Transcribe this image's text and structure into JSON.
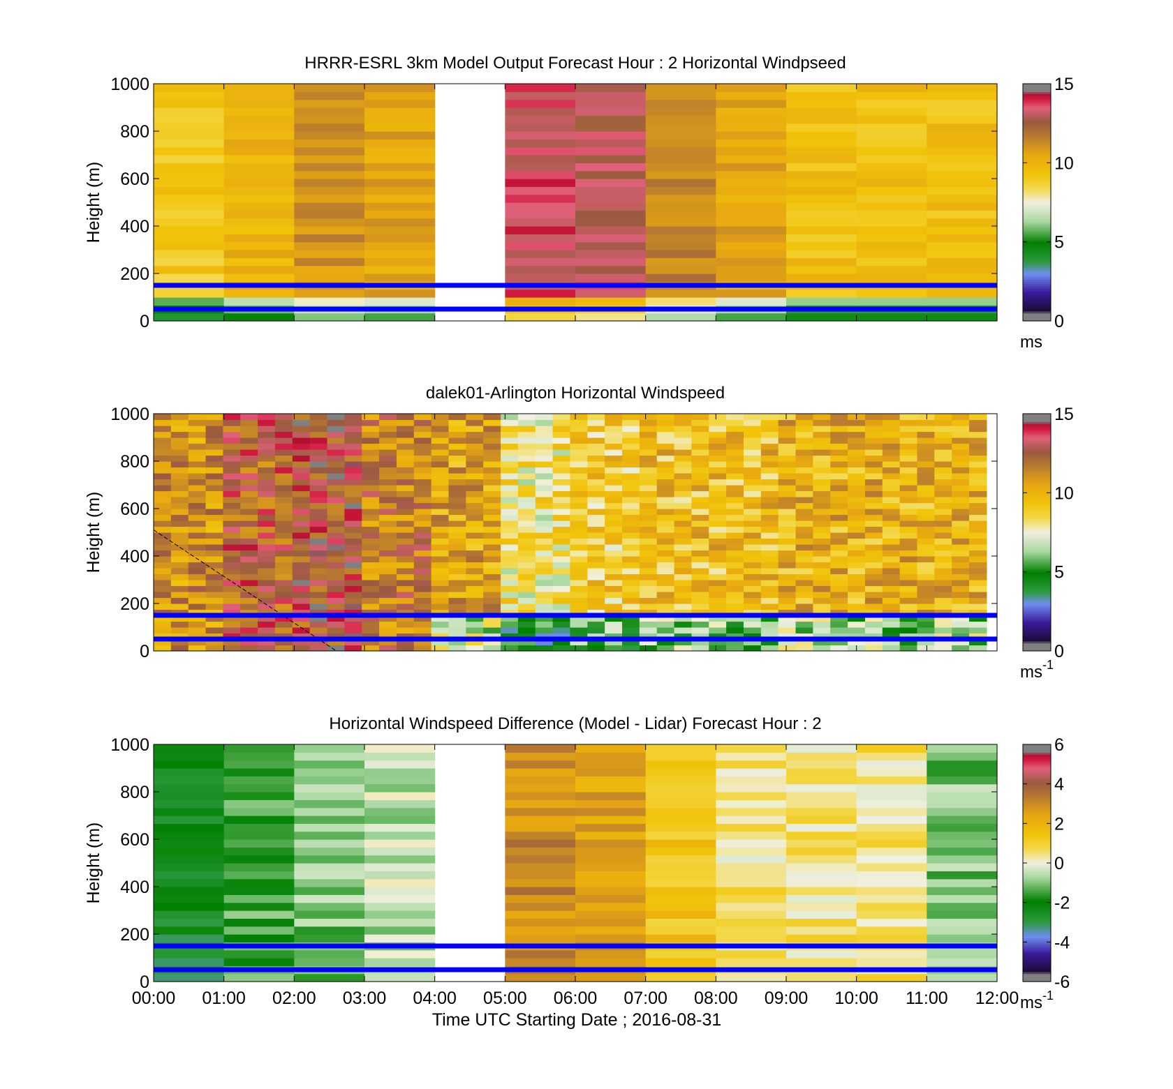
{
  "chart_data": [
    {
      "type": "heatmap",
      "title": "HRRR-ESRL 3km Model Output   Forecast Hour : 2 Horizontal Windpseed",
      "xlabel": "",
      "ylabel": "Height (m)",
      "xlim": [
        "00:00",
        "12:00"
      ],
      "x_ticks": [
        "00:00",
        "01:00",
        "02:00",
        "03:00",
        "04:00",
        "05:00",
        "06:00",
        "07:00",
        "08:00",
        "09:00",
        "10:00",
        "11:00",
        "12:00"
      ],
      "show_xtick_labels": false,
      "ylim": [
        0,
        1000
      ],
      "y_ticks": [
        0,
        200,
        400,
        600,
        800,
        1000
      ],
      "colorbar": {
        "min": 0,
        "max": 15,
        "ticks": [
          0,
          5,
          10,
          15
        ],
        "unit": "ms",
        "unit_sup": ""
      },
      "reference_lines_m": [
        150,
        50
      ],
      "reference_line_color": "#0000ff",
      "missing_hours": [
        4
      ],
      "nominal_column_values_ms": [
        9,
        10,
        11,
        10.5,
        null,
        13.5,
        13,
        11.5,
        10.5,
        9.5,
        9.5,
        9.5
      ],
      "grid": false
    },
    {
      "type": "heatmap",
      "title": "dalek01-Arlington  Horizontal Windspeed",
      "xlabel": "",
      "ylabel": "Height (m)",
      "xlim": [
        "00:00",
        "12:00"
      ],
      "x_ticks": [
        "00:00",
        "01:00",
        "02:00",
        "03:00",
        "04:00",
        "05:00",
        "06:00",
        "07:00",
        "08:00",
        "09:00",
        "10:00",
        "11:00",
        "12:00"
      ],
      "show_xtick_labels": false,
      "ylim": [
        0,
        1000
      ],
      "y_ticks": [
        0,
        200,
        400,
        600,
        800,
        1000
      ],
      "colorbar": {
        "min": 0,
        "max": 15,
        "ticks": [
          0,
          5,
          10,
          15
        ],
        "unit": "ms",
        "unit_sup": "-1"
      },
      "reference_lines_m": [
        150,
        50
      ],
      "reference_line_color": "#0000ff",
      "data_end_hour": 11.85,
      "nominal_hourly_values_ms": [
        11,
        12.5,
        13,
        11.5,
        10.5,
        8,
        9,
        9.5,
        9.5,
        10,
        10,
        10
      ],
      "grid": false
    },
    {
      "type": "heatmap",
      "title": "Horizontal Windspeed Difference (Model - Lidar) Forecast Hour : 2",
      "xlabel": "Time UTC  Starting Date ; 2016-08-31",
      "ylabel": "Height (m)",
      "xlim": [
        "00:00",
        "12:00"
      ],
      "x_ticks": [
        "00:00",
        "01:00",
        "02:00",
        "03:00",
        "04:00",
        "05:00",
        "06:00",
        "07:00",
        "08:00",
        "09:00",
        "10:00",
        "11:00",
        "12:00"
      ],
      "show_xtick_labels": true,
      "ylim": [
        0,
        1000
      ],
      "y_ticks": [
        0,
        200,
        400,
        600,
        800,
        1000
      ],
      "colorbar": {
        "min": -6,
        "max": 6,
        "ticks": [
          -6,
          -4,
          -2,
          0,
          2,
          4,
          6
        ],
        "unit": "ms",
        "unit_sup": "-1"
      },
      "reference_lines_m": [
        150,
        50
      ],
      "reference_line_color": "#0000ff",
      "missing_hours": [
        4
      ],
      "nominal_column_values_ms": [
        -2.5,
        -1.5,
        -1,
        -0.5,
        null,
        3,
        2.5,
        1.5,
        0.5,
        0.5,
        0.5,
        -1
      ],
      "grid": false
    }
  ]
}
